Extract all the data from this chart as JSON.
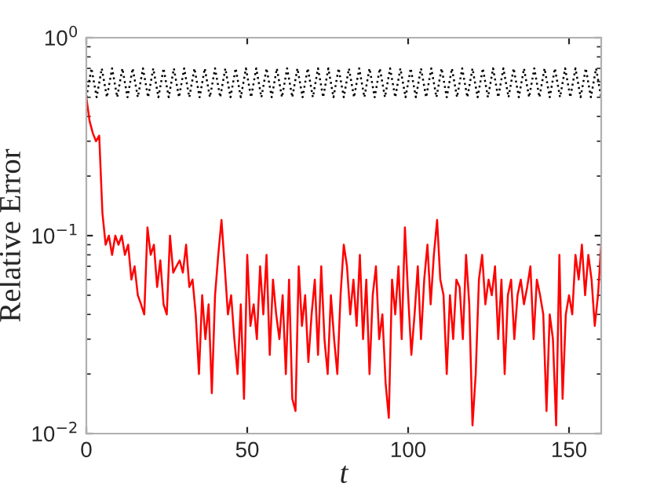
{
  "chart_data": {
    "type": "line",
    "xlabel": "t",
    "ylabel": "Relative Error",
    "log": "y",
    "xlim": [
      0,
      160
    ],
    "xticks": [
      0,
      50,
      100,
      150
    ],
    "ylim": [
      0.01,
      1
    ],
    "yticks": [
      {
        "value": 0.01,
        "label": "10$^{−2}$"
      },
      {
        "value": 0.1,
        "label": "10$^{−1}$"
      },
      {
        "value": 1,
        "label": "10$^{0}$"
      }
    ],
    "grid": false,
    "legend": false,
    "series": [
      {
        "color": "#000000",
        "line_style": "dotted",
        "x": [
          0,
          1.6,
          3.2,
          4.8,
          6.4,
          8,
          9.6,
          11.2,
          12.8,
          14.4,
          16,
          17.6,
          19.2,
          20.8,
          22.4,
          24,
          25.6,
          27.2,
          28.8,
          30.4,
          32,
          33.6,
          35.2,
          36.8,
          38.4,
          40,
          41.6,
          43.2,
          44.8,
          46.4,
          48,
          49.6,
          51.2,
          52.8,
          54.4,
          56,
          57.6,
          59.2,
          60.8,
          62.4,
          64,
          65.6,
          67.2,
          68.8,
          70.4,
          72,
          73.6,
          75.2,
          76.8,
          78.4,
          80,
          81.6,
          83.2,
          84.8,
          86.4,
          88,
          89.6,
          91.2,
          92.8,
          94.4,
          96,
          97.6,
          99.2,
          100.8,
          102.4,
          104,
          105.6,
          107.2,
          108.8,
          110.4,
          112,
          113.6,
          115.2,
          116.8,
          118.4,
          120,
          121.6,
          123.2,
          124.8,
          126.4,
          128,
          129.6,
          131.2,
          132.8,
          134.4,
          136,
          137.6,
          139.2,
          140.8,
          142.4,
          144,
          145.6,
          147.2,
          148.8,
          150.4,
          152,
          153.6,
          155.2,
          156.8,
          158.4,
          160
        ],
        "values": [
          0.5,
          0.7,
          0.5,
          0.7,
          0.5,
          0.7,
          0.5,
          0.7,
          0.5,
          0.7,
          0.5,
          0.7,
          0.5,
          0.7,
          0.5,
          0.7,
          0.5,
          0.7,
          0.5,
          0.7,
          0.5,
          0.7,
          0.5,
          0.7,
          0.5,
          0.7,
          0.5,
          0.7,
          0.5,
          0.7,
          0.5,
          0.7,
          0.5,
          0.7,
          0.5,
          0.7,
          0.5,
          0.7,
          0.5,
          0.7,
          0.5,
          0.7,
          0.5,
          0.7,
          0.5,
          0.7,
          0.5,
          0.7,
          0.5,
          0.7,
          0.5,
          0.7,
          0.5,
          0.7,
          0.5,
          0.7,
          0.5,
          0.7,
          0.5,
          0.7,
          0.5,
          0.7,
          0.5,
          0.7,
          0.5,
          0.7,
          0.5,
          0.7,
          0.5,
          0.7,
          0.5,
          0.7,
          0.5,
          0.7,
          0.5,
          0.7,
          0.5,
          0.7,
          0.5,
          0.7,
          0.5,
          0.7,
          0.5,
          0.7,
          0.5,
          0.7,
          0.5,
          0.7,
          0.5,
          0.7,
          0.5,
          0.7,
          0.5,
          0.7,
          0.5,
          0.7,
          0.5,
          0.7,
          0.5,
          0.7,
          0.5
        ]
      },
      {
        "color": "#ff0000",
        "line_style": "solid",
        "x": [
          0,
          1,
          2,
          3,
          4,
          5,
          6,
          7,
          8,
          9,
          10,
          11,
          12,
          13,
          14,
          15,
          16,
          17,
          18,
          19,
          20,
          21,
          22,
          23,
          24,
          25,
          26,
          27,
          28,
          29,
          30,
          31,
          32,
          33,
          34,
          35,
          36,
          37,
          38,
          39,
          40,
          41,
          42,
          43,
          44,
          45,
          46,
          47,
          48,
          49,
          50,
          51,
          52,
          53,
          54,
          55,
          56,
          57,
          58,
          59,
          60,
          61,
          62,
          63,
          64,
          65,
          66,
          67,
          68,
          69,
          70,
          71,
          72,
          73,
          74,
          75,
          76,
          77,
          78,
          79,
          80,
          81,
          82,
          83,
          84,
          85,
          86,
          87,
          88,
          89,
          90,
          91,
          92,
          93,
          94,
          95,
          96,
          97,
          98,
          99,
          100,
          101,
          102,
          103,
          104,
          105,
          106,
          107,
          108,
          109,
          110,
          111,
          112,
          113,
          114,
          115,
          116,
          117,
          118,
          119,
          120,
          121,
          122,
          123,
          124,
          125,
          126,
          127,
          128,
          129,
          130,
          131,
          132,
          133,
          134,
          135,
          136,
          137,
          138,
          139,
          140,
          141,
          142,
          143,
          144,
          145,
          146,
          147,
          148,
          149,
          150,
          151,
          152,
          153,
          154,
          155,
          156,
          157,
          158,
          159,
          160
        ],
        "values": [
          0.5,
          0.38,
          0.33,
          0.3,
          0.32,
          0.13,
          0.09,
          0.1,
          0.08,
          0.1,
          0.09,
          0.1,
          0.08,
          0.09,
          0.06,
          0.07,
          0.05,
          0.045,
          0.04,
          0.11,
          0.08,
          0.09,
          0.055,
          0.075,
          0.045,
          0.04,
          0.1,
          0.065,
          0.07,
          0.075,
          0.065,
          0.09,
          0.055,
          0.06,
          0.04,
          0.02,
          0.05,
          0.03,
          0.045,
          0.016,
          0.05,
          0.08,
          0.12,
          0.07,
          0.04,
          0.05,
          0.03,
          0.02,
          0.045,
          0.015,
          0.08,
          0.035,
          0.045,
          0.03,
          0.07,
          0.04,
          0.08,
          0.025,
          0.06,
          0.04,
          0.03,
          0.05,
          0.02,
          0.06,
          0.015,
          0.013,
          0.07,
          0.035,
          0.05,
          0.023,
          0.04,
          0.06,
          0.025,
          0.07,
          0.03,
          0.02,
          0.05,
          0.03,
          0.02,
          0.05,
          0.09,
          0.07,
          0.04,
          0.06,
          0.035,
          0.08,
          0.03,
          0.06,
          0.02,
          0.05,
          0.07,
          0.03,
          0.04,
          0.018,
          0.012,
          0.06,
          0.04,
          0.07,
          0.03,
          0.11,
          0.05,
          0.025,
          0.04,
          0.07,
          0.03,
          0.06,
          0.09,
          0.045,
          0.08,
          0.12,
          0.06,
          0.05,
          0.02,
          0.05,
          0.03,
          0.06,
          0.055,
          0.03,
          0.08,
          0.045,
          0.011,
          0.02,
          0.06,
          0.08,
          0.045,
          0.06,
          0.05,
          0.07,
          0.03,
          0.06,
          0.02,
          0.05,
          0.06,
          0.03,
          0.05,
          0.06,
          0.045,
          0.055,
          0.07,
          0.03,
          0.06,
          0.05,
          0.04,
          0.013,
          0.04,
          0.03,
          0.011,
          0.08,
          0.015,
          0.04,
          0.05,
          0.04,
          0.08,
          0.06,
          0.09,
          0.05,
          0.08,
          0.06,
          0.035,
          0.05,
          0.09
        ]
      }
    ]
  }
}
